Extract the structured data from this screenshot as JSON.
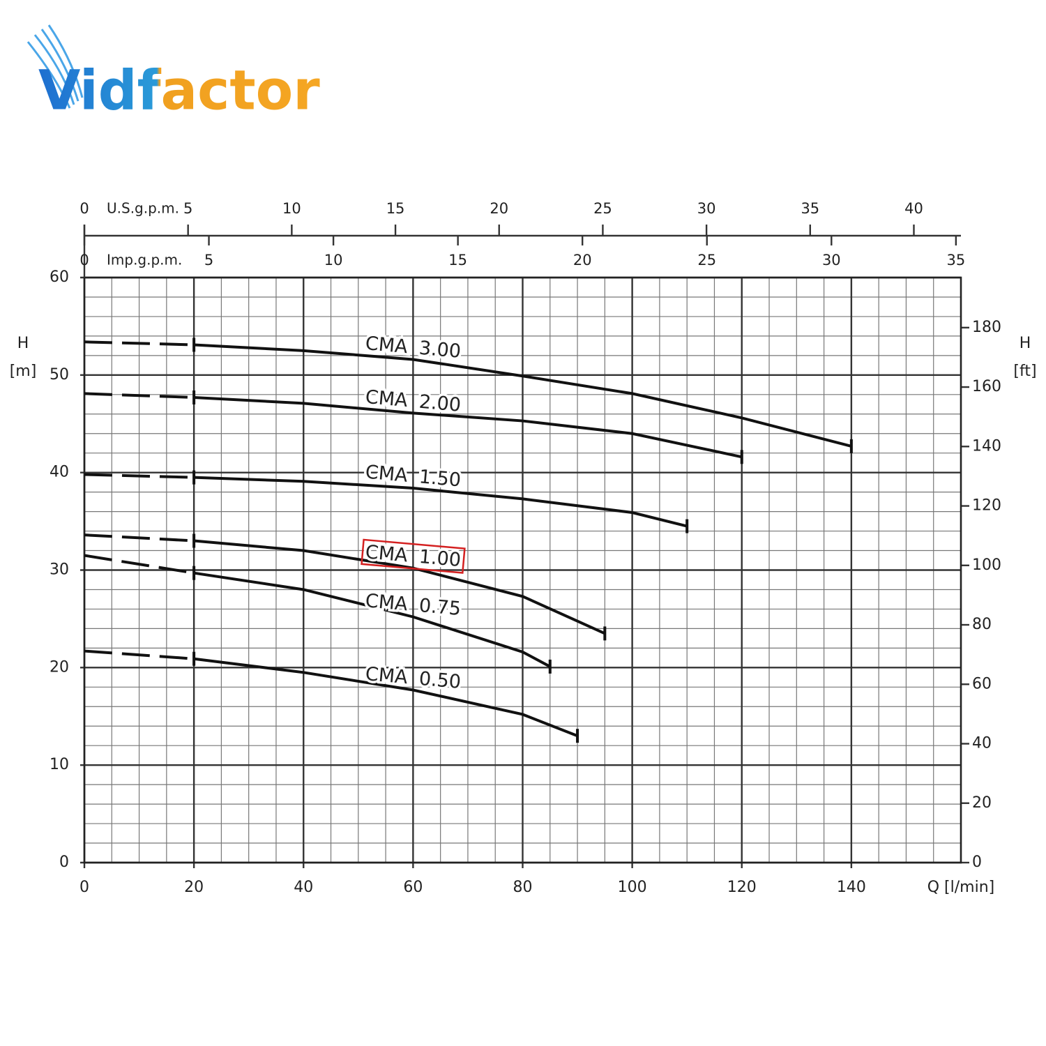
{
  "logo": "Vidfactor",
  "chart_data": {
    "type": "line",
    "xlabel": "Q [l/min]",
    "ylabel": [
      "H",
      "[m]"
    ],
    "y2label": [
      "H",
      "[ft]"
    ],
    "xlim": [
      0,
      160
    ],
    "xticks": [
      0,
      20,
      40,
      60,
      80,
      100,
      120,
      140
    ],
    "ylim": [
      0,
      60
    ],
    "yticks": [
      0,
      10,
      20,
      30,
      40,
      50,
      60
    ],
    "y2lim": [
      0,
      196.85
    ],
    "y2ticks": [
      0,
      20,
      40,
      60,
      80,
      100,
      120,
      140,
      160,
      180
    ],
    "top_axes": [
      {
        "label": "U.S.g.p.m.",
        "xlim": [
          0,
          42.27
        ],
        "xticks": [
          0,
          5,
          10,
          15,
          20,
          25,
          30,
          35,
          40
        ]
      },
      {
        "label": "Imp.g.p.m.",
        "xlim": [
          0,
          35.2
        ],
        "xticks": [
          0,
          5,
          10,
          15,
          20,
          25,
          30,
          35
        ]
      }
    ],
    "grid": true,
    "minor_grid": {
      "x": 5,
      "y": 2
    },
    "color": "#111111",
    "series": [
      {
        "name": "CMA 3.00",
        "x": [
          0,
          20,
          40,
          60,
          80,
          100,
          120,
          140
        ],
        "values": [
          53.4,
          53.1,
          52.5,
          51.6,
          49.9,
          48.1,
          45.6,
          42.7
        ]
      },
      {
        "name": "CMA 2.00",
        "x": [
          0,
          20,
          40,
          60,
          80,
          100,
          120
        ],
        "values": [
          48.1,
          47.7,
          47.1,
          46.1,
          45.3,
          44.0,
          41.6
        ]
      },
      {
        "name": "CMA 1.50",
        "x": [
          0,
          20,
          40,
          60,
          80,
          100,
          110
        ],
        "values": [
          39.8,
          39.5,
          39.1,
          38.4,
          37.3,
          35.9,
          34.5
        ]
      },
      {
        "name": "CMA 1.00",
        "x": [
          0,
          20,
          40,
          60,
          80,
          95
        ],
        "values": [
          33.6,
          33.0,
          32.0,
          30.2,
          27.3,
          23.5
        ],
        "highlight": true
      },
      {
        "name": "CMA 0.75",
        "x": [
          0,
          20,
          40,
          60,
          80,
          85
        ],
        "values": [
          31.5,
          29.7,
          28.0,
          25.2,
          21.6,
          20.1
        ]
      },
      {
        "name": "CMA 0.50",
        "x": [
          0,
          20,
          40,
          60,
          80,
          90
        ],
        "values": [
          21.7,
          20.9,
          19.5,
          17.7,
          15.2,
          13.0
        ]
      }
    ]
  }
}
